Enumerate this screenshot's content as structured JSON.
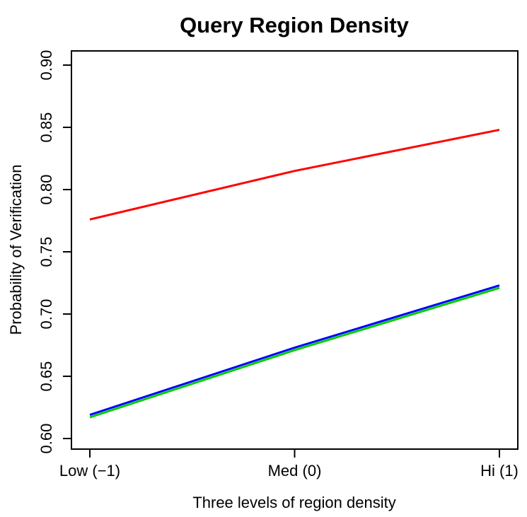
{
  "chart_data": {
    "type": "line",
    "title": "Query Region Density",
    "x_label": "Three levels of region density",
    "y_label": "Probability of Verification",
    "categories": [
      "Low (−1)",
      "Med (0)",
      "Hi (1)"
    ],
    "series": [
      {
        "color": "#ff0000",
        "values": [
          0.776,
          0.815,
          0.848
        ]
      },
      {
        "color": "#00cc00",
        "values": [
          0.617,
          0.671,
          0.721
        ]
      },
      {
        "color": "#0000ff",
        "values": [
          0.619,
          0.673,
          0.723
        ]
      }
    ],
    "ylim": [
      0.5915,
      0.9114
    ],
    "yticks": [
      {
        "value": 0.6,
        "label": "0.60"
      },
      {
        "value": 0.65,
        "label": "0.65"
      },
      {
        "value": 0.7,
        "label": "0.70"
      },
      {
        "value": 0.75,
        "label": "0.75"
      },
      {
        "value": 0.8,
        "label": "0.80"
      },
      {
        "value": 0.85,
        "label": "0.85"
      },
      {
        "value": 0.9,
        "label": "0.90"
      }
    ],
    "grid": false
  }
}
